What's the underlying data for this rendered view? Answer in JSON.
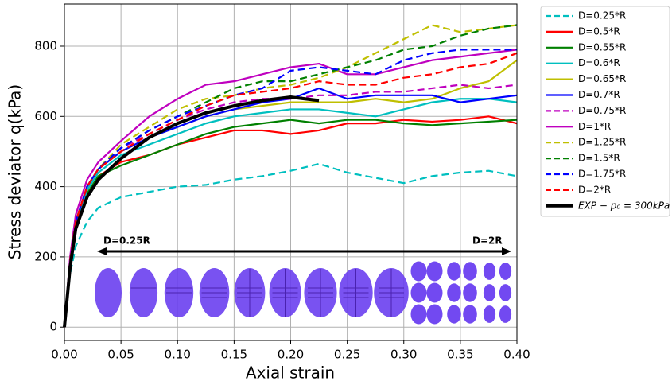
{
  "chart_data": {
    "type": "line",
    "x_label": "Axial strain",
    "y_label": "Stress deviator q(kPa)",
    "xlim": [
      0,
      0.4
    ],
    "ylim": [
      -38,
      920
    ],
    "xticks": [
      {
        "value": 0,
        "label": "0.00"
      },
      {
        "value": 0.05,
        "label": "0.05"
      },
      {
        "value": 0.1,
        "label": "0.10"
      },
      {
        "value": 0.15,
        "label": "0.15"
      },
      {
        "value": 0.2,
        "label": "0.20"
      },
      {
        "value": 0.25,
        "label": "0.25"
      },
      {
        "value": 0.3,
        "label": "0.30"
      },
      {
        "value": 0.35,
        "label": "0.35"
      },
      {
        "value": 0.4,
        "label": "0.40"
      }
    ],
    "yticks": [
      0,
      200,
      400,
      600,
      800
    ],
    "grid": true,
    "legend": "outside-right",
    "annotations": [
      "D=0.25R",
      "D=2R"
    ],
    "x": [
      0,
      0.005,
      0.01,
      0.02,
      0.03,
      0.05,
      0.075,
      0.1,
      0.125,
      0.15,
      0.175,
      0.2,
      0.225,
      0.25,
      0.275,
      0.3,
      0.325,
      0.35,
      0.375,
      0.4
    ],
    "series": [
      {
        "name": "D=0.25*R",
        "color": "#00bfbf",
        "line_style": "dashed",
        "values": [
          0,
          150,
          230,
          300,
          340,
          370,
          385,
          400,
          405,
          420,
          430,
          445,
          465,
          440,
          425,
          410,
          430,
          440,
          445,
          430
        ]
      },
      {
        "name": "D=0.5*R",
        "color": "#ff0000",
        "line_style": "solid",
        "values": [
          0,
          180,
          280,
          380,
          430,
          470,
          490,
          520,
          540,
          560,
          560,
          550,
          560,
          580,
          580,
          590,
          585,
          590,
          600,
          580
        ]
      },
      {
        "name": "D=0.55*R",
        "color": "#008000",
        "line_style": "solid",
        "values": [
          0,
          180,
          280,
          380,
          430,
          460,
          490,
          520,
          550,
          570,
          580,
          590,
          580,
          590,
          590,
          580,
          575,
          580,
          585,
          590
        ]
      },
      {
        "name": "D=0.6*R",
        "color": "#00bfbf",
        "line_style": "solid",
        "values": [
          0,
          180,
          290,
          390,
          440,
          490,
          520,
          550,
          580,
          600,
          610,
          620,
          620,
          610,
          600,
          620,
          640,
          650,
          650,
          640
        ]
      },
      {
        "name": "D=0.65*R",
        "color": "#bfbf00",
        "line_style": "solid",
        "values": [
          0,
          190,
          300,
          400,
          450,
          500,
          540,
          570,
          600,
          620,
          630,
          640,
          640,
          640,
          650,
          640,
          650,
          680,
          700,
          760
        ]
      },
      {
        "name": "D=0.7*R",
        "color": "#0000ff",
        "line_style": "solid",
        "values": [
          0,
          190,
          300,
          400,
          450,
          500,
          540,
          570,
          600,
          620,
          640,
          650,
          680,
          650,
          660,
          660,
          660,
          640,
          650,
          660
        ]
      },
      {
        "name": "D=0.75*R",
        "color": "#bf00bf",
        "line_style": "dashed",
        "values": [
          0,
          190,
          300,
          400,
          450,
          510,
          550,
          590,
          620,
          640,
          650,
          650,
          660,
          660,
          670,
          670,
          680,
          690,
          680,
          690
        ]
      },
      {
        "name": "D=1*R",
        "color": "#bf00bf",
        "line_style": "solid",
        "values": [
          0,
          200,
          320,
          420,
          470,
          530,
          600,
          650,
          690,
          700,
          720,
          740,
          750,
          720,
          720,
          740,
          760,
          770,
          780,
          790
        ]
      },
      {
        "name": "D=1.25*R",
        "color": "#bfbf00",
        "line_style": "dashed",
        "values": [
          0,
          190,
          300,
          400,
          450,
          520,
          570,
          620,
          650,
          660,
          680,
          690,
          710,
          740,
          780,
          820,
          860,
          840,
          850,
          860
        ]
      },
      {
        "name": "D=1.5*R",
        "color": "#008000",
        "line_style": "dashed",
        "values": [
          0,
          190,
          300,
          400,
          450,
          510,
          560,
          600,
          640,
          680,
          700,
          700,
          720,
          740,
          760,
          790,
          800,
          830,
          850,
          860
        ]
      },
      {
        "name": "D=1.75*R",
        "color": "#0000ff",
        "line_style": "dashed",
        "values": [
          0,
          190,
          300,
          400,
          450,
          510,
          560,
          600,
          630,
          660,
          680,
          730,
          740,
          730,
          720,
          760,
          780,
          790,
          790,
          790
        ]
      },
      {
        "name": "D=2*R",
        "color": "#ff0000",
        "line_style": "dashed",
        "values": [
          0,
          190,
          300,
          400,
          450,
          500,
          550,
          590,
          630,
          660,
          670,
          680,
          700,
          690,
          690,
          710,
          720,
          740,
          750,
          780
        ]
      },
      {
        "name": "EXP − p₀ = 300kPa",
        "color": "#000000",
        "line_style": "bold",
        "values": [
          0,
          170,
          280,
          370,
          420,
          480,
          540,
          580,
          610,
          630,
          645,
          655,
          645,
          null,
          null,
          null,
          null,
          null,
          null,
          null
        ]
      }
    ]
  }
}
